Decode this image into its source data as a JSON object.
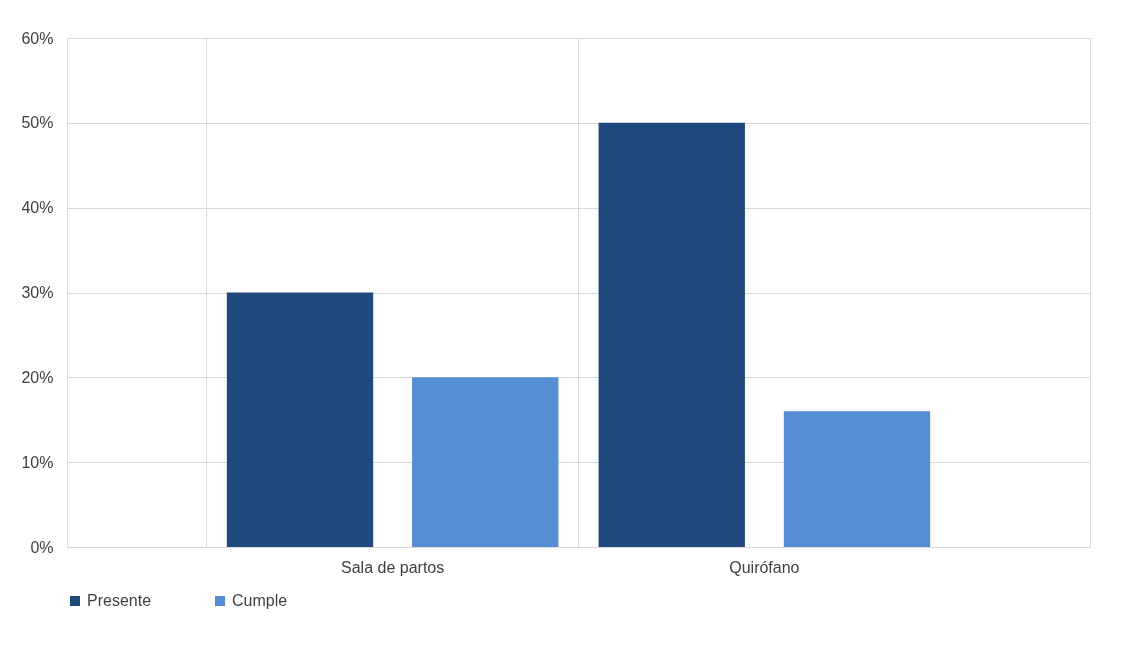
{
  "chart_data": {
    "type": "bar",
    "categories": [
      "Sala de partos",
      "Quirófano"
    ],
    "series": [
      {
        "name": "Presente",
        "color": "#1f497d",
        "values": [
          30,
          50
        ]
      },
      {
        "name": "Cumple",
        "color": "#558ed5",
        "values": [
          20,
          16
        ]
      }
    ],
    "ylim": [
      0,
      60
    ],
    "yticks": [
      {
        "value": 0,
        "label": "0%"
      },
      {
        "value": 10,
        "label": "10%"
      },
      {
        "value": 20,
        "label": "20%"
      },
      {
        "value": 30,
        "label": "30%"
      },
      {
        "value": 40,
        "label": "40%"
      },
      {
        "value": 50,
        "label": "50%"
      },
      {
        "value": 60,
        "label": "60%"
      }
    ],
    "grid": true,
    "legend": "bottom"
  }
}
